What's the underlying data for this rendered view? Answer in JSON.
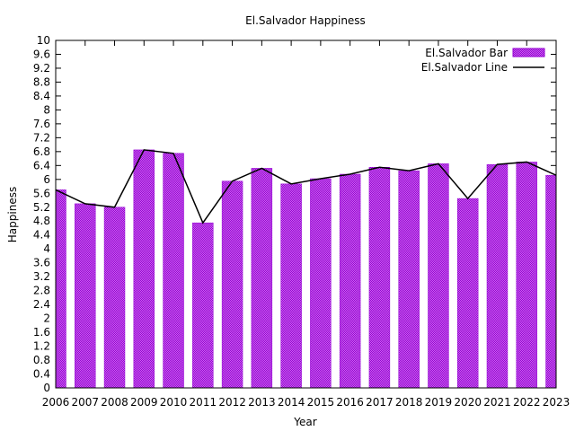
{
  "chart_data": {
    "type": "bar",
    "title": "El.Salvador Happiness",
    "xlabel": "Year",
    "ylabel": "Happiness",
    "ylim": [
      0,
      10
    ],
    "yticks": [
      "0",
      "0.4",
      "0.8",
      "1.2",
      "1.6",
      "2",
      "2.4",
      "2.8",
      "3.2",
      "3.6",
      "4",
      "4.4",
      "4.8",
      "5.2",
      "5.6",
      "6",
      "6.4",
      "6.8",
      "7.2",
      "7.6",
      "8",
      "8.4",
      "8.8",
      "9.2",
      "9.6",
      "10"
    ],
    "categories": [
      "2006",
      "2007",
      "2008",
      "2009",
      "2010",
      "2011",
      "2012",
      "2013",
      "2014",
      "2015",
      "2016",
      "2017",
      "2018",
      "2019",
      "2020",
      "2021",
      "2022",
      "2023"
    ],
    "series": [
      {
        "name": "El.Salvador Bar",
        "kind": "bar",
        "color": "#9400d3",
        "values": [
          5.7,
          5.3,
          5.2,
          6.85,
          6.75,
          4.75,
          5.95,
          6.32,
          5.87,
          6.02,
          6.15,
          6.35,
          6.25,
          6.45,
          5.45,
          6.43,
          6.5,
          6.12
        ]
      },
      {
        "name": "El.Salvador Line",
        "kind": "line",
        "color": "#000000",
        "values": [
          5.7,
          5.3,
          5.2,
          6.85,
          6.75,
          4.75,
          5.95,
          6.32,
          5.87,
          6.02,
          6.15,
          6.35,
          6.25,
          6.45,
          5.45,
          6.43,
          6.5,
          6.12
        ]
      }
    ],
    "legend_position": "top-right",
    "grid": false
  }
}
